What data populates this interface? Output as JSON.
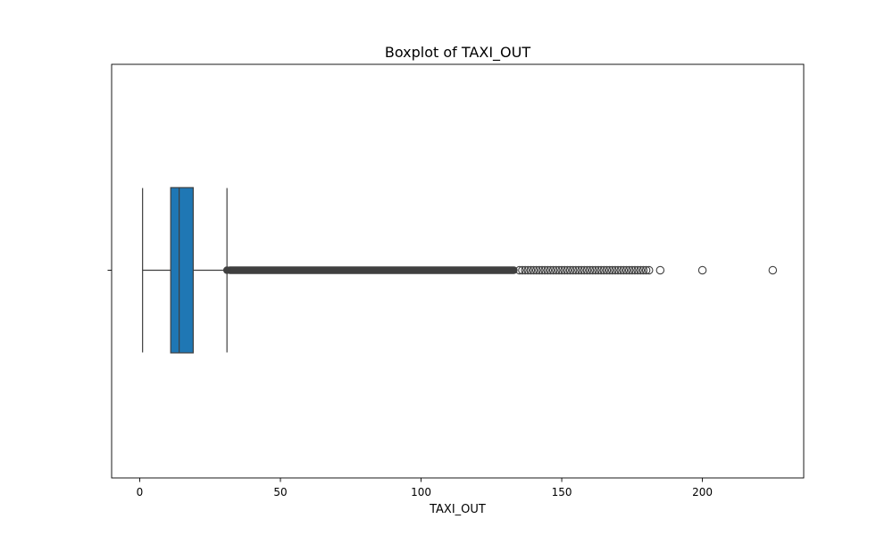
{
  "chart_data": {
    "type": "box",
    "orientation": "horizontal",
    "title": "Boxplot of TAXI_OUT",
    "xlabel": "TAXI_OUT",
    "ylabel": "",
    "xlim": [
      -10,
      236
    ],
    "xticks": [
      0,
      50,
      100,
      150,
      200
    ],
    "grid": false,
    "legend": "none",
    "box_color": "#1f77b4",
    "line_color": "#3f3f3f",
    "boxes": [
      {
        "name": "",
        "whisker_low": 1,
        "q1": 11,
        "median": 14,
        "q3": 19,
        "whisker_high": 31,
        "outlier_band": [
          31,
          134
        ],
        "outliers": [
          135,
          136,
          137,
          138,
          139,
          140,
          141,
          142,
          143,
          144,
          145,
          146,
          147,
          148,
          149,
          150,
          151,
          152,
          153,
          154,
          155,
          156,
          157,
          158,
          159,
          160,
          161,
          162,
          163,
          164,
          165,
          166,
          167,
          168,
          169,
          170,
          171,
          172,
          173,
          174,
          175,
          176,
          177,
          178,
          179,
          180,
          181,
          185,
          200,
          225
        ]
      }
    ]
  }
}
